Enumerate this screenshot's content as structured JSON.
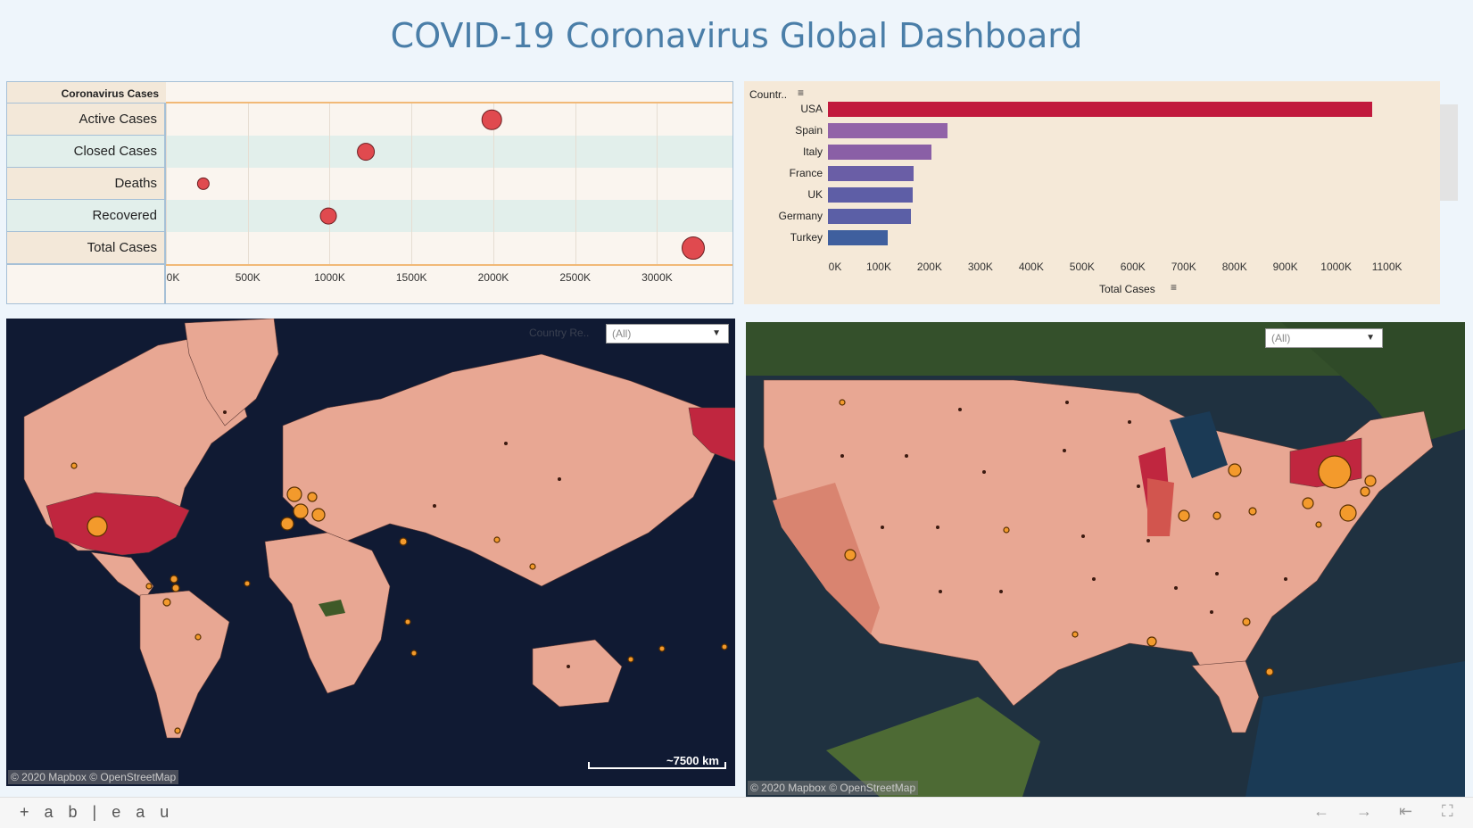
{
  "title": "COVID-19 Coronavirus Global Dashboard",
  "dot_chart": {
    "header": "Coronavirus Cases",
    "rows": [
      "Active Cases",
      "Closed Cases",
      "Deaths",
      "Recovered",
      "Total Cases"
    ],
    "ticks": [
      "0K",
      "500K",
      "1000K",
      "1500K",
      "2000K",
      "2500K",
      "3000K"
    ]
  },
  "bar_chart": {
    "column_header": "Countr..",
    "x_label": "Total Cases",
    "ticks": [
      "0K",
      "100K",
      "200K",
      "300K",
      "400K",
      "500K",
      "600K",
      "700K",
      "800K",
      "900K",
      "1000K",
      "1100K"
    ]
  },
  "chart_data": [
    {
      "type": "scatter",
      "title": "",
      "header": "Coronavirus Cases",
      "categories": [
        "Active Cases",
        "Closed Cases",
        "Deaths",
        "Recovered",
        "Total Cases"
      ],
      "values": [
        1990000,
        1220000,
        230000,
        990000,
        3220000
      ],
      "xlabel": "",
      "ylabel": "",
      "xlim": [
        0,
        3450000
      ],
      "color": "#e04a4f",
      "encoding": "dot size proportional to value"
    },
    {
      "type": "bar",
      "orientation": "horizontal",
      "title": "",
      "categories": [
        "USA",
        "Spain",
        "Italy",
        "France",
        "UK",
        "Germany",
        "Turkey"
      ],
      "values": [
        1070000,
        236000,
        203000,
        168000,
        166000,
        164000,
        117000
      ],
      "xlabel": "Total Cases",
      "ylabel": "Countr..",
      "xlim": [
        0,
        1120000
      ],
      "colors": [
        "#c1193d",
        "#9263a8",
        "#8a5fa6",
        "#6a5ea6",
        "#5e5ea6",
        "#5b5fa6",
        "#3f5f9e"
      ]
    }
  ],
  "world_map": {
    "filter_label": "Country Re..",
    "filter_value": "(All)",
    "scale": "~7500 km",
    "attribution": "© 2020 Mapbox © OpenStreetMap"
  },
  "us_map": {
    "filter_value": "(All)",
    "attribution": "© 2020 Mapbox © OpenStreetMap"
  },
  "footer": {
    "logo": "+ a b | e a u",
    "icons": [
      "undo-icon",
      "redo-icon",
      "revert-icon",
      "fullscreen-icon"
    ]
  }
}
